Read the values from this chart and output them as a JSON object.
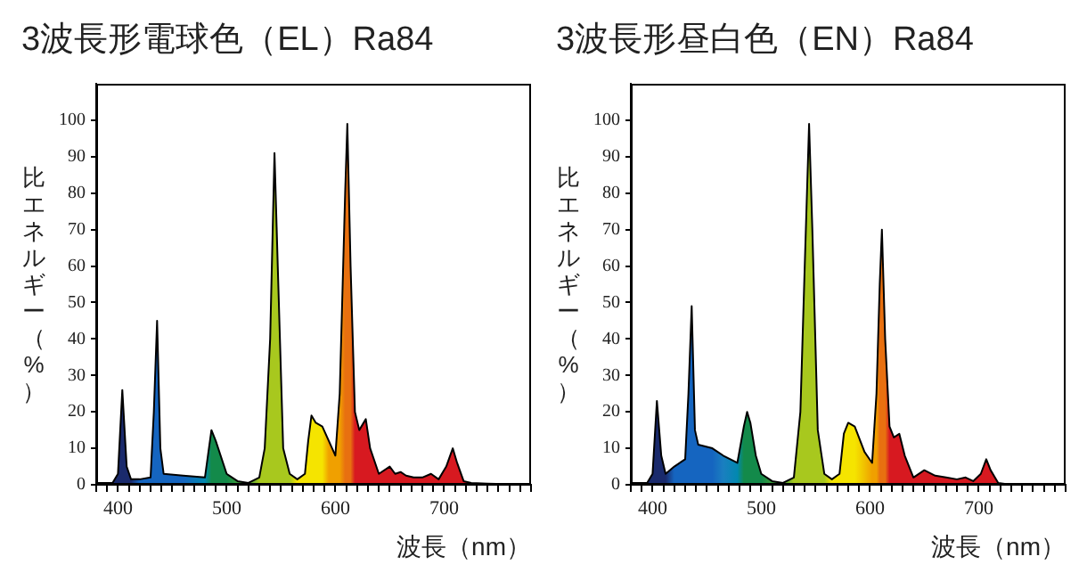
{
  "chart_data": [
    {
      "type": "area",
      "title": "3波長形電球色（EL）Ra84",
      "xlabel": "波長（nm）",
      "ylabel": "比エネルギー（%）",
      "xlim": [
        380,
        780
      ],
      "ylim": [
        0,
        110
      ],
      "xticks": [
        {
          "value": 380,
          "label": null
        },
        {
          "value": 390,
          "label": null
        },
        400,
        {
          "value": 410,
          "label": null
        },
        {
          "value": 420,
          "label": null
        },
        {
          "value": 430,
          "label": null
        },
        {
          "value": 440,
          "label": null
        },
        {
          "value": 450,
          "label": null
        },
        {
          "value": 460,
          "label": null
        },
        {
          "value": 470,
          "label": null
        },
        {
          "value": 480,
          "label": null
        },
        {
          "value": 490,
          "label": null
        },
        500,
        {
          "value": 510,
          "label": null
        },
        {
          "value": 520,
          "label": null
        },
        {
          "value": 530,
          "label": null
        },
        {
          "value": 540,
          "label": null
        },
        {
          "value": 550,
          "label": null
        },
        {
          "value": 560,
          "label": null
        },
        {
          "value": 570,
          "label": null
        },
        {
          "value": 580,
          "label": null
        },
        {
          "value": 590,
          "label": null
        },
        600,
        {
          "value": 610,
          "label": null
        },
        {
          "value": 620,
          "label": null
        },
        {
          "value": 630,
          "label": null
        },
        {
          "value": 640,
          "label": null
        },
        {
          "value": 650,
          "label": null
        },
        {
          "value": 660,
          "label": null
        },
        {
          "value": 670,
          "label": null
        },
        {
          "value": 680,
          "label": null
        },
        {
          "value": 690,
          "label": null
        },
        700,
        {
          "value": 710,
          "label": null
        },
        {
          "value": 720,
          "label": null
        },
        {
          "value": 730,
          "label": null
        },
        {
          "value": 740,
          "label": null
        },
        {
          "value": 750,
          "label": null
        },
        {
          "value": 760,
          "label": null
        },
        {
          "value": 770,
          "label": null
        },
        {
          "value": 780,
          "label": null
        }
      ],
      "yticks": [
        0,
        10,
        20,
        30,
        40,
        50,
        60,
        70,
        80,
        90,
        100
      ],
      "grid": false,
      "legend": false,
      "x": [
        380,
        395,
        400,
        404,
        408,
        412,
        420,
        430,
        433,
        436,
        439,
        442,
        460,
        480,
        486,
        490,
        500,
        510,
        520,
        530,
        535,
        540,
        544,
        547,
        552,
        558,
        565,
        572,
        575,
        578,
        582,
        588,
        594,
        600,
        604,
        609,
        611,
        614,
        618,
        622,
        628,
        632,
        640,
        650,
        655,
        660,
        665,
        672,
        680,
        688,
        695,
        702,
        708,
        712,
        718,
        725,
        740,
        780
      ],
      "series": [
        {
          "color": "#000000",
          "values": [
            0.5,
            0.5,
            3,
            26,
            5,
            1.5,
            1.5,
            2,
            20,
            45,
            10,
            3,
            2.5,
            2,
            15,
            12,
            3,
            1,
            0.5,
            2,
            10,
            40,
            91,
            60,
            10,
            3,
            1.5,
            3,
            12,
            19,
            17,
            16,
            12,
            8,
            25,
            80,
            99,
            60,
            20,
            15,
            18,
            10,
            3,
            5,
            3,
            3.5,
            2.5,
            2,
            2,
            3,
            1.5,
            5,
            10,
            6,
            1,
            0.5,
            0.3,
            0
          ],
          "colors": [
            "#1a2a6c",
            "#1a2a6c",
            "#1a2a6c",
            "#1a2a6c",
            "#1a2a6c",
            "#1a2a6c",
            "#1565c0",
            "#1565c0",
            "#1565c0",
            "#1565c0",
            "#1565c0",
            "#1565c0",
            "#1565c0",
            "#0288b0",
            "#138a4a",
            "#138a4a",
            "#138a4a",
            "#3a9a3a",
            "#3a9a3a",
            "#a8c81e",
            "#a8c81e",
            "#a8c81e",
            "#a8c81e",
            "#a8c81e",
            "#a8c81e",
            "#a8c81e",
            "#f5e400",
            "#f5e400",
            "#f5e400",
            "#f5e400",
            "#f5e400",
            "#f5e400",
            "#f0a000",
            "#f0a000",
            "#f0a000",
            "#e87010",
            "#e87010",
            "#e87010",
            "#d71920",
            "#d71920",
            "#d71920",
            "#d71920",
            "#d71920",
            "#d71920",
            "#d71920",
            "#d71920",
            "#d71920",
            "#d71920",
            "#d71920",
            "#d71920",
            "#d71920",
            "#d71920",
            "#d71920",
            "#d71920",
            "#d71920",
            "#d71920",
            "#d71920",
            "#d71920"
          ]
        }
      ]
    },
    {
      "type": "area",
      "title": "3波長形昼白色（EN）Ra84",
      "xlabel": "波長（nm）",
      "ylabel": "比エネルギー（%）",
      "xlim": [
        380,
        780
      ],
      "ylim": [
        0,
        110
      ],
      "xticks": [
        {
          "value": 380,
          "label": null
        },
        {
          "value": 390,
          "label": null
        },
        400,
        {
          "value": 410,
          "label": null
        },
        {
          "value": 420,
          "label": null
        },
        {
          "value": 430,
          "label": null
        },
        {
          "value": 440,
          "label": null
        },
        {
          "value": 450,
          "label": null
        },
        {
          "value": 460,
          "label": null
        },
        {
          "value": 470,
          "label": null
        },
        {
          "value": 480,
          "label": null
        },
        {
          "value": 490,
          "label": null
        },
        500,
        {
          "value": 510,
          "label": null
        },
        {
          "value": 520,
          "label": null
        },
        {
          "value": 530,
          "label": null
        },
        {
          "value": 540,
          "label": null
        },
        {
          "value": 550,
          "label": null
        },
        {
          "value": 560,
          "label": null
        },
        {
          "value": 570,
          "label": null
        },
        {
          "value": 580,
          "label": null
        },
        {
          "value": 590,
          "label": null
        },
        600,
        {
          "value": 610,
          "label": null
        },
        {
          "value": 620,
          "label": null
        },
        {
          "value": 630,
          "label": null
        },
        {
          "value": 640,
          "label": null
        },
        {
          "value": 650,
          "label": null
        },
        {
          "value": 660,
          "label": null
        },
        {
          "value": 670,
          "label": null
        },
        {
          "value": 680,
          "label": null
        },
        {
          "value": 690,
          "label": null
        },
        700,
        {
          "value": 710,
          "label": null
        },
        {
          "value": 720,
          "label": null
        },
        {
          "value": 730,
          "label": null
        },
        {
          "value": 740,
          "label": null
        },
        {
          "value": 750,
          "label": null
        },
        {
          "value": 760,
          "label": null
        },
        {
          "value": 770,
          "label": null
        },
        {
          "value": 780,
          "label": null
        }
      ],
      "yticks": [
        0,
        10,
        20,
        30,
        40,
        50,
        60,
        70,
        80,
        90,
        100
      ],
      "grid": false,
      "legend": false,
      "x": [
        380,
        395,
        400,
        404,
        408,
        412,
        420,
        430,
        433,
        436,
        439,
        442,
        455,
        465,
        478,
        484,
        487,
        490,
        495,
        500,
        510,
        520,
        530,
        536,
        540,
        544,
        547,
        552,
        558,
        565,
        572,
        576,
        580,
        586,
        595,
        602,
        606,
        609,
        611,
        614,
        618,
        622,
        627,
        632,
        640,
        650,
        660,
        670,
        680,
        688,
        695,
        702,
        707,
        711,
        718,
        730,
        780
      ],
      "series": [
        {
          "color": "#000000",
          "values": [
            0.5,
            0.5,
            3,
            23,
            8,
            3,
            5,
            7,
            25,
            49,
            15,
            11,
            10,
            8,
            6,
            16,
            20,
            17,
            8,
            3,
            1,
            0.5,
            2,
            20,
            60,
            99,
            70,
            15,
            3,
            1.5,
            3,
            14,
            17,
            16,
            9,
            6,
            25,
            55,
            70,
            40,
            16,
            13,
            14,
            8,
            2,
            4,
            2.5,
            2,
            1.5,
            2,
            1,
            3,
            7,
            4,
            0.5,
            0,
            0
          ],
          "colors": [
            "#1a2a6c",
            "#1a2a6c",
            "#1a2a6c",
            "#1a2a6c",
            "#1a2a6c",
            "#1a2a6c",
            "#1565c0",
            "#1565c0",
            "#1565c0",
            "#1565c0",
            "#1565c0",
            "#1565c0",
            "#1565c0",
            "#1a7fc0",
            "#0288b0",
            "#138a4a",
            "#138a4a",
            "#138a4a",
            "#138a4a",
            "#138a4a",
            "#3a9a3a",
            "#3a9a3a",
            "#a8c81e",
            "#a8c81e",
            "#a8c81e",
            "#a8c81e",
            "#a8c81e",
            "#a8c81e",
            "#a8c81e",
            "#f5e400",
            "#f5e400",
            "#f5e400",
            "#f5e400",
            "#f5e400",
            "#f0c000",
            "#f0a000",
            "#f0a000",
            "#e87010",
            "#e87010",
            "#e87010",
            "#d71920",
            "#d71920",
            "#d71920",
            "#d71920",
            "#d71920",
            "#d71920",
            "#d71920",
            "#d71920",
            "#d71920",
            "#d71920",
            "#d71920",
            "#d71920",
            "#d71920",
            "#d71920",
            "#d71920",
            "#d71920",
            "#d71920"
          ]
        }
      ]
    }
  ]
}
